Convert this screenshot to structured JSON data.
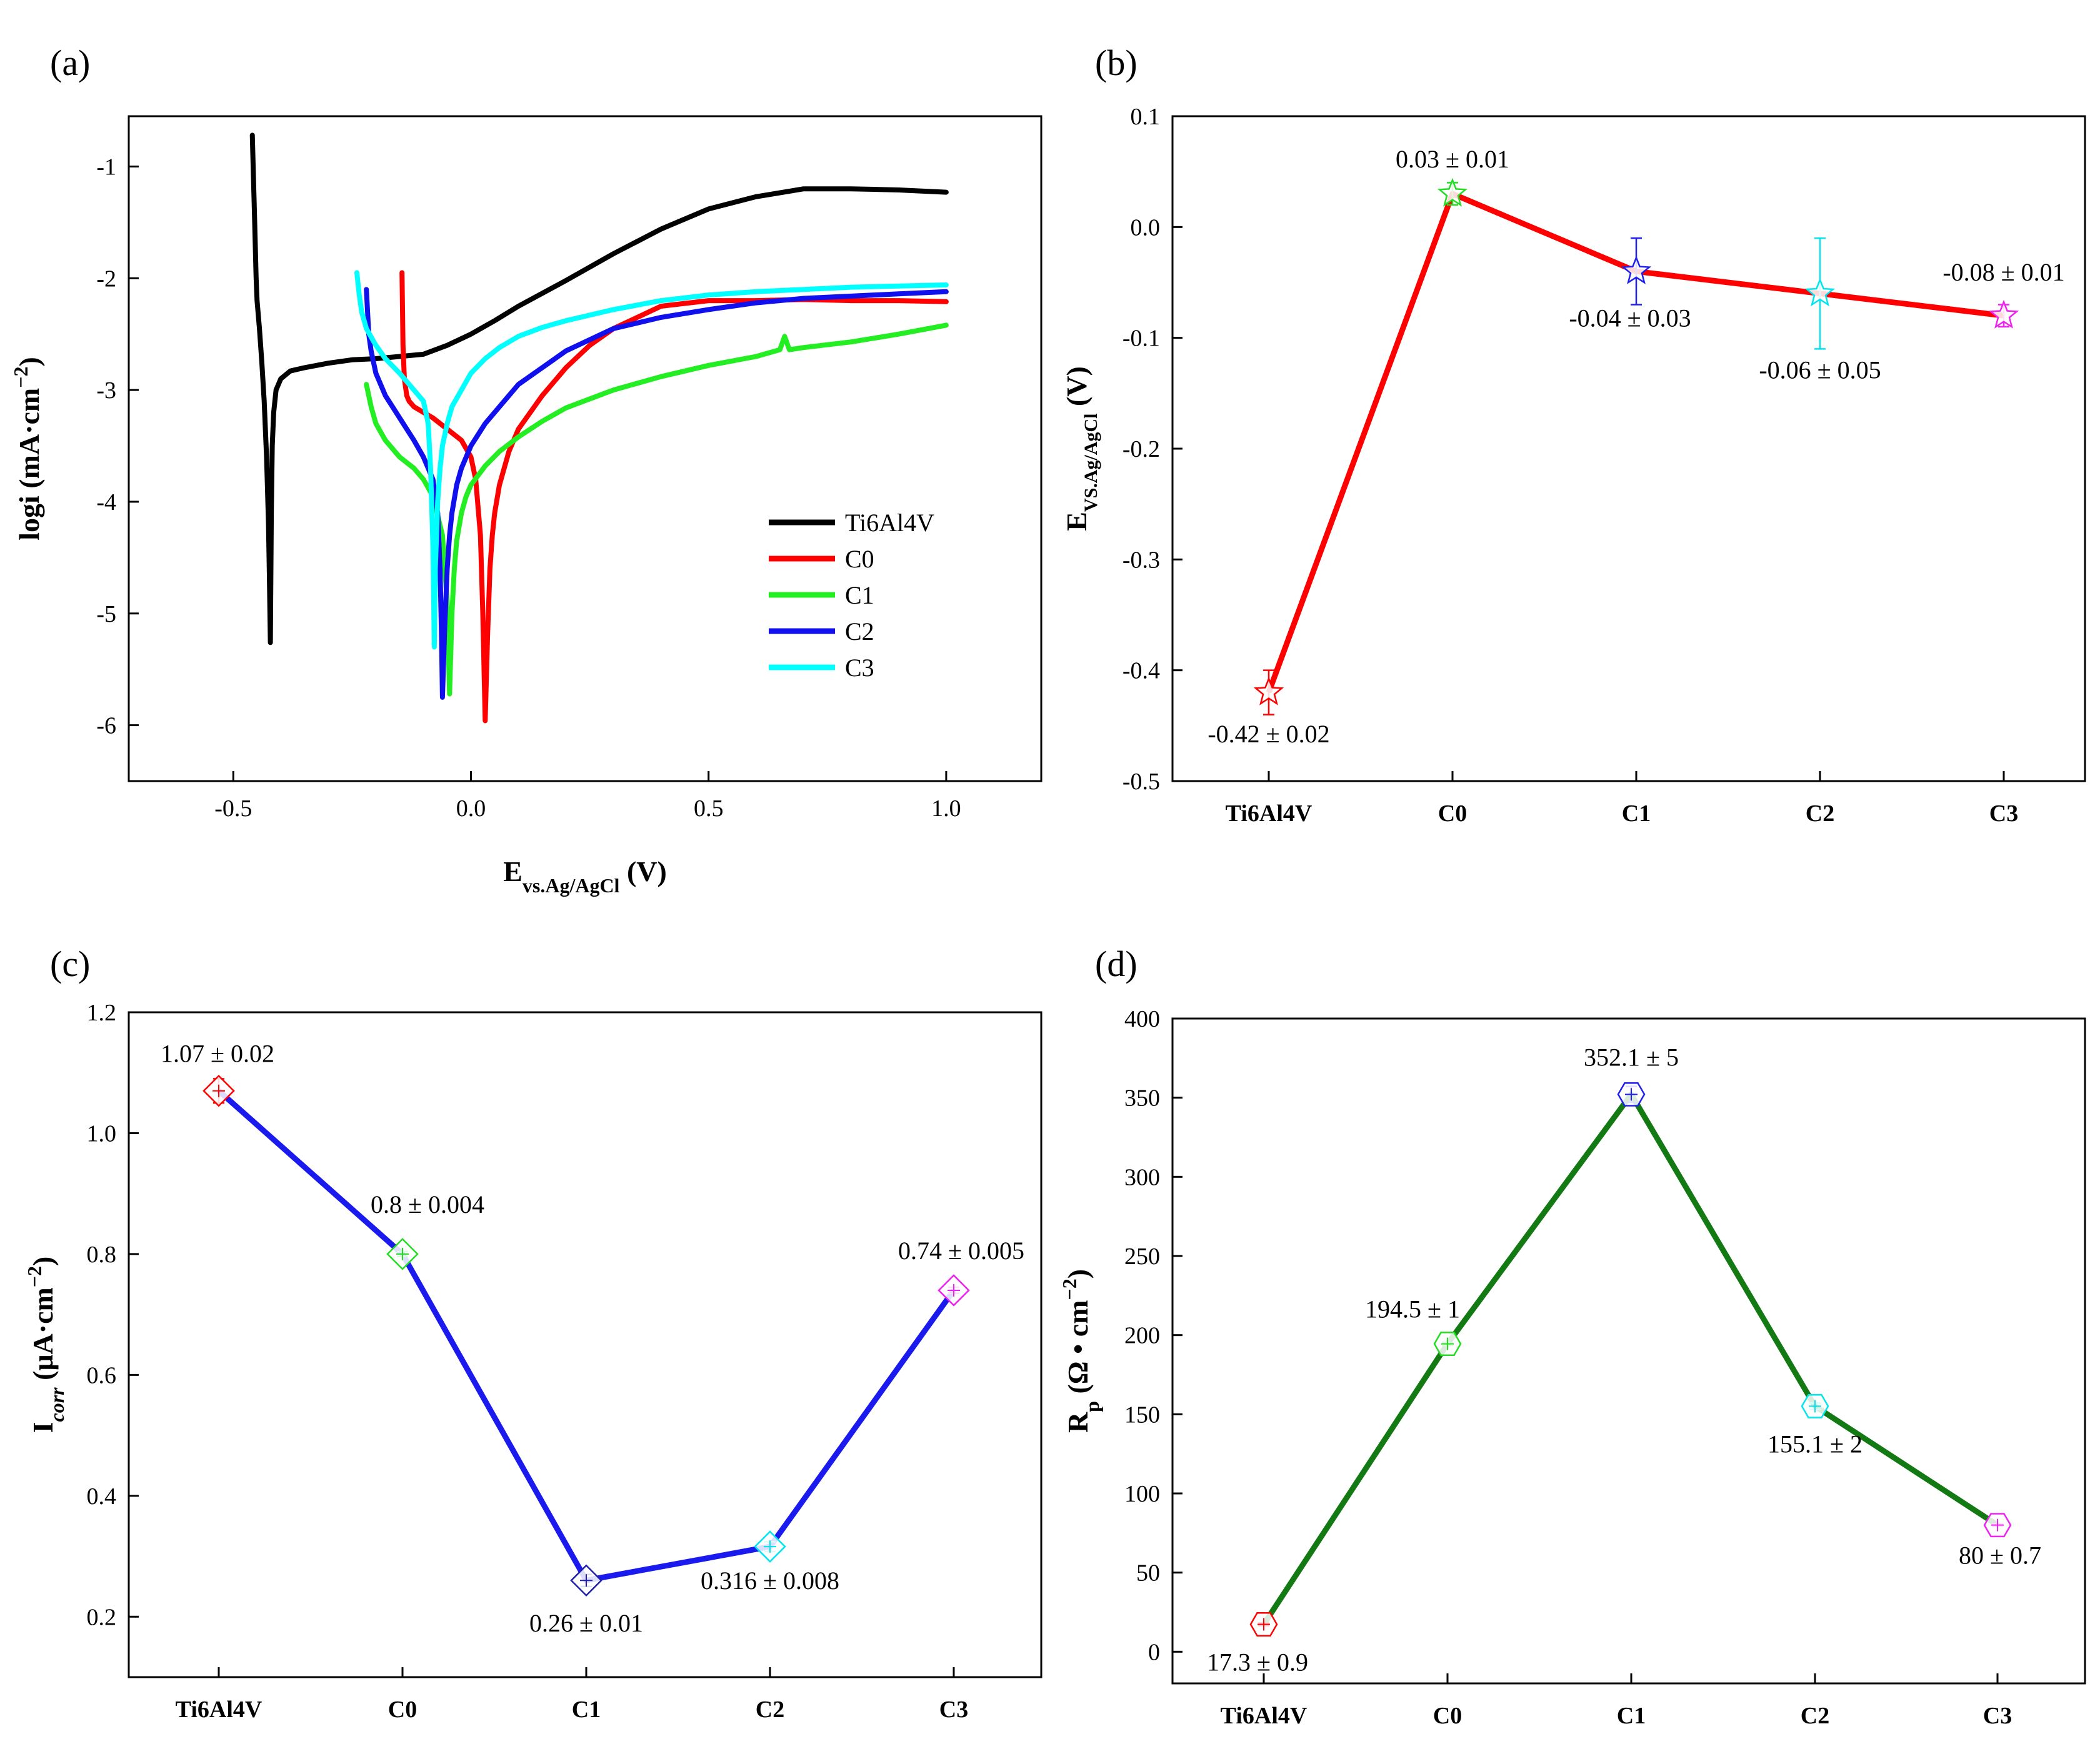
{
  "chart_data": [
    {
      "type": "line",
      "panel_label": "(a)",
      "xlabel": "E",
      "xlabel_sub": "vs.Ag/AgCl",
      "xlabel_unit": " (V)",
      "ylabel": "logi (mA·cm",
      "ylabel_sup": "−2",
      "ylabel_end": ")",
      "xlim": [
        -0.72,
        1.2
      ],
      "ylim": [
        -6.5,
        -0.55
      ],
      "xticks": [
        -0.5,
        0.0,
        0.5,
        1.0
      ],
      "xtick_labels": [
        "-0.5",
        "0.0",
        "0.5",
        "1.0"
      ],
      "yticks": [
        -1,
        -2,
        -3,
        -4,
        -5,
        -6
      ],
      "ytick_labels": [
        "-1",
        "-2",
        "-3",
        "-4",
        "-5",
        "-6"
      ],
      "legend": "right",
      "series": [
        {
          "name": "Ti6Al4V",
          "color": "#000000",
          "x": [
            -0.46,
            -0.455,
            -0.452,
            -0.45,
            -0.445,
            -0.44,
            -0.435,
            -0.43,
            -0.426,
            -0.424,
            -0.422,
            -0.42,
            -0.418,
            -0.415,
            -0.41,
            -0.4,
            -0.38,
            -0.35,
            -0.3,
            -0.25,
            -0.2,
            -0.15,
            -0.1,
            -0.05,
            0.0,
            0.05,
            0.1,
            0.2,
            0.3,
            0.4,
            0.5,
            0.6,
            0.7,
            0.8,
            0.9,
            1.0
          ],
          "y": [
            -0.72,
            -1.5,
            -2.0,
            -2.2,
            -2.45,
            -2.75,
            -3.1,
            -3.6,
            -4.2,
            -4.7,
            -5.26,
            -4.1,
            -3.5,
            -3.2,
            -3.0,
            -2.9,
            -2.83,
            -2.8,
            -2.76,
            -2.73,
            -2.72,
            -2.7,
            -2.68,
            -2.6,
            -2.5,
            -2.38,
            -2.25,
            -2.02,
            -1.78,
            -1.56,
            -1.38,
            -1.27,
            -1.2,
            -1.2,
            -1.21,
            -1.23
          ]
        },
        {
          "name": "C0",
          "color": "#ff0000",
          "x": [
            -0.145,
            -0.143,
            -0.14,
            -0.135,
            -0.13,
            -0.12,
            -0.1,
            -0.08,
            -0.05,
            -0.02,
            0.0,
            0.01,
            0.02,
            0.025,
            0.03,
            0.035,
            0.04,
            0.045,
            0.05,
            0.06,
            0.08,
            0.1,
            0.15,
            0.2,
            0.25,
            0.3,
            0.4,
            0.5,
            0.6,
            0.7,
            0.8,
            0.9,
            1.0
          ],
          "y": [
            -1.95,
            -2.6,
            -2.9,
            -3.05,
            -3.1,
            -3.15,
            -3.2,
            -3.25,
            -3.35,
            -3.45,
            -3.6,
            -3.8,
            -4.3,
            -5.0,
            -5.96,
            -5.2,
            -4.6,
            -4.3,
            -4.1,
            -3.85,
            -3.55,
            -3.35,
            -3.05,
            -2.8,
            -2.6,
            -2.45,
            -2.25,
            -2.2,
            -2.2,
            -2.19,
            -2.2,
            -2.2,
            -2.21
          ]
        },
        {
          "name": "C1",
          "color": "#22ee22",
          "x": [
            -0.22,
            -0.21,
            -0.2,
            -0.18,
            -0.15,
            -0.12,
            -0.1,
            -0.08,
            -0.06,
            -0.05,
            -0.045,
            -0.04,
            -0.035,
            -0.03,
            -0.02,
            -0.01,
            0.0,
            0.03,
            0.06,
            0.1,
            0.15,
            0.2,
            0.3,
            0.4,
            0.5,
            0.6,
            0.65,
            0.66,
            0.67,
            0.7,
            0.8,
            0.9,
            1.0
          ],
          "y": [
            -2.95,
            -3.15,
            -3.3,
            -3.45,
            -3.6,
            -3.7,
            -3.8,
            -3.95,
            -4.3,
            -4.9,
            -5.72,
            -5.0,
            -4.6,
            -4.35,
            -4.1,
            -3.95,
            -3.85,
            -3.68,
            -3.55,
            -3.42,
            -3.28,
            -3.16,
            -3.0,
            -2.88,
            -2.78,
            -2.7,
            -2.64,
            -2.52,
            -2.64,
            -2.62,
            -2.57,
            -2.5,
            -2.42
          ]
        },
        {
          "name": "C2",
          "color": "#1010ee",
          "x": [
            -0.22,
            -0.215,
            -0.21,
            -0.2,
            -0.18,
            -0.15,
            -0.12,
            -0.1,
            -0.08,
            -0.07,
            -0.065,
            -0.062,
            -0.06,
            -0.055,
            -0.05,
            -0.045,
            -0.04,
            -0.03,
            -0.02,
            0.0,
            0.03,
            0.06,
            0.1,
            0.15,
            0.2,
            0.25,
            0.3,
            0.4,
            0.5,
            0.6,
            0.7,
            0.8,
            0.9,
            1.0
          ],
          "y": [
            -2.1,
            -2.5,
            -2.65,
            -2.85,
            -3.05,
            -3.25,
            -3.45,
            -3.6,
            -3.8,
            -4.1,
            -4.6,
            -5.2,
            -5.75,
            -5.1,
            -4.6,
            -4.3,
            -4.1,
            -3.85,
            -3.7,
            -3.5,
            -3.3,
            -3.15,
            -2.95,
            -2.8,
            -2.65,
            -2.55,
            -2.45,
            -2.35,
            -2.28,
            -2.22,
            -2.18,
            -2.16,
            -2.14,
            -2.12
          ]
        },
        {
          "name": "C3",
          "color": "#00ffff",
          "x": [
            -0.24,
            -0.235,
            -0.23,
            -0.22,
            -0.2,
            -0.18,
            -0.15,
            -0.12,
            -0.1,
            -0.09,
            -0.085,
            -0.08,
            -0.077,
            -0.075,
            -0.07,
            -0.065,
            -0.06,
            -0.05,
            -0.04,
            -0.02,
            0.0,
            0.03,
            0.06,
            0.1,
            0.15,
            0.2,
            0.3,
            0.4,
            0.5,
            0.6,
            0.7,
            0.8,
            0.9,
            1.0
          ],
          "y": [
            -1.95,
            -2.15,
            -2.3,
            -2.45,
            -2.6,
            -2.72,
            -2.85,
            -3.0,
            -3.1,
            -3.3,
            -3.7,
            -4.4,
            -5.3,
            -4.6,
            -4.0,
            -3.7,
            -3.5,
            -3.3,
            -3.15,
            -3.0,
            -2.85,
            -2.72,
            -2.62,
            -2.52,
            -2.44,
            -2.38,
            -2.28,
            -2.2,
            -2.15,
            -2.12,
            -2.1,
            -2.08,
            -2.07,
            -2.06
          ]
        }
      ]
    },
    {
      "type": "line",
      "panel_label": "(b)",
      "xlabel": "",
      "ylabel": "E",
      "ylabel_sub": "VS.Ag/AgCl",
      "ylabel_unit": " (V)",
      "categories": [
        "Ti6Al4V",
        "C0",
        "C1",
        "C2",
        "C3"
      ],
      "ylim": [
        -0.5,
        0.1
      ],
      "yticks": [
        0.1,
        0.0,
        -0.1,
        -0.2,
        -0.3,
        -0.4,
        -0.5
      ],
      "ytick_labels": [
        "0.1",
        "0.0",
        "-0.1",
        "-0.2",
        "-0.3",
        "-0.4",
        "-0.5"
      ],
      "line_color": "#ff0000",
      "marker": "star",
      "values": [
        -0.42,
        0.03,
        -0.04,
        -0.06,
        -0.08
      ],
      "errors": [
        0.02,
        0.01,
        0.03,
        0.05,
        0.01
      ],
      "marker_colors": [
        "#ff0000",
        "#22dd22",
        "#2020ee",
        "#00e5ee",
        "#ee22ee"
      ],
      "annotations": [
        "-0.42 ± 0.02",
        "0.03 ± 0.01",
        "-0.04 ± 0.03",
        "-0.06 ± 0.05",
        "-0.08 ± 0.01"
      ]
    },
    {
      "type": "line",
      "panel_label": "(c)",
      "xlabel": "",
      "ylabel": "I",
      "ylabel_sub": "corr",
      "ylabel_unit": " (μA·cm",
      "ylabel_sup": "−2",
      "ylabel_end": ")",
      "categories": [
        "Ti6Al4V",
        "C0",
        "C1",
        "C2",
        "C3"
      ],
      "ylim": [
        0.1,
        1.2
      ],
      "yticks": [
        0.2,
        0.4,
        0.6,
        0.8,
        1.0,
        1.2
      ],
      "ytick_labels": [
        "0.2",
        "0.4",
        "0.6",
        "0.8",
        "1.0",
        "1.2"
      ],
      "line_color": "#1a1aee",
      "marker": "diamond",
      "values": [
        1.07,
        0.8,
        0.26,
        0.316,
        0.74
      ],
      "errors": [
        0.02,
        0.004,
        0.01,
        0.008,
        0.005
      ],
      "marker_colors": [
        "#ff0000",
        "#22dd22",
        "#2020aa",
        "#00e5ee",
        "#ee22ee"
      ],
      "annotations": [
        "1.07 ± 0.02",
        "0.8 ± 0.004",
        "0.26 ± 0.01",
        "0.316 ± 0.008",
        "0.74 ± 0.005"
      ]
    },
    {
      "type": "line",
      "panel_label": "(d)",
      "xlabel": "",
      "ylabel": "R",
      "ylabel_sub": "p",
      "ylabel_unit": "  (Ω • cm",
      "ylabel_sup": "−2",
      "ylabel_end": ")",
      "categories": [
        "Ti6Al4V",
        "C0",
        "C1",
        "C2",
        "C3"
      ],
      "ylim": [
        -20,
        400
      ],
      "yticks": [
        0,
        50,
        100,
        150,
        200,
        250,
        300,
        350,
        400
      ],
      "ytick_labels": [
        "0",
        "50",
        "100",
        "150",
        "200",
        "250",
        "300",
        "350",
        "400"
      ],
      "line_color": "#137a13",
      "marker": "hexagon",
      "values": [
        17.3,
        194.5,
        352.1,
        155.1,
        80
      ],
      "errors": [
        0.9,
        1,
        5,
        2,
        0.7
      ],
      "marker_colors": [
        "#ff0000",
        "#22dd22",
        "#2020ee",
        "#00e5ee",
        "#ee22ee"
      ],
      "annotations": [
        "17.3 ± 0.9",
        "194.5 ± 1",
        "352.1 ± 5",
        "155.1 ± 2",
        "80 ± 0.7"
      ]
    }
  ]
}
